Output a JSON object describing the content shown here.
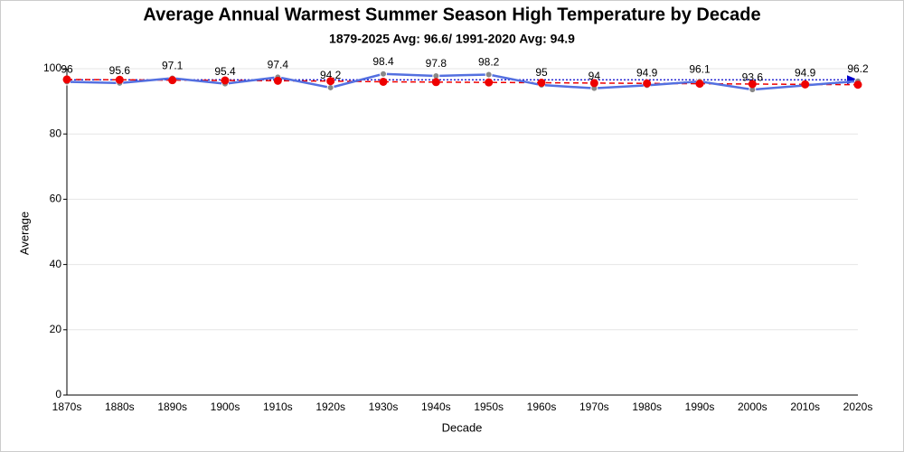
{
  "chart_data": {
    "type": "line",
    "title": "Average Annual Warmest Summer Season High Temperature by Decade",
    "subtitle": "1879-2025 Avg: 96.6/ 1991-2020 Avg: 94.9",
    "x_label": "Decade",
    "y_label": "Average",
    "categories": [
      "1870s",
      "1880s",
      "1890s",
      "1900s",
      "1910s",
      "1920s",
      "1930s",
      "1940s",
      "1950s",
      "1960s",
      "1970s",
      "1980s",
      "1990s",
      "2000s",
      "2010s",
      "2020s"
    ],
    "values": [
      96,
      95.6,
      97.1,
      95.4,
      97.4,
      94.2,
      98.4,
      97.8,
      98.2,
      95,
      94,
      94.9,
      96.1,
      93.6,
      94.9,
      96.2
    ],
    "color": "#5470e0",
    "reference_line": {
      "value": 96.6,
      "color": "#0000cc"
    },
    "trend": {
      "values": [
        96.7,
        96.6,
        96.5,
        96.4,
        96.3,
        96.2,
        96.0,
        95.9,
        95.8,
        95.7,
        95.6,
        95.5,
        95.4,
        95.3,
        95.2,
        95.1
      ],
      "color": "#ee0000"
    },
    "ylim": [
      0,
      100
    ],
    "yticks": [
      0,
      20,
      40,
      60,
      80,
      100
    ],
    "grid": true
  }
}
